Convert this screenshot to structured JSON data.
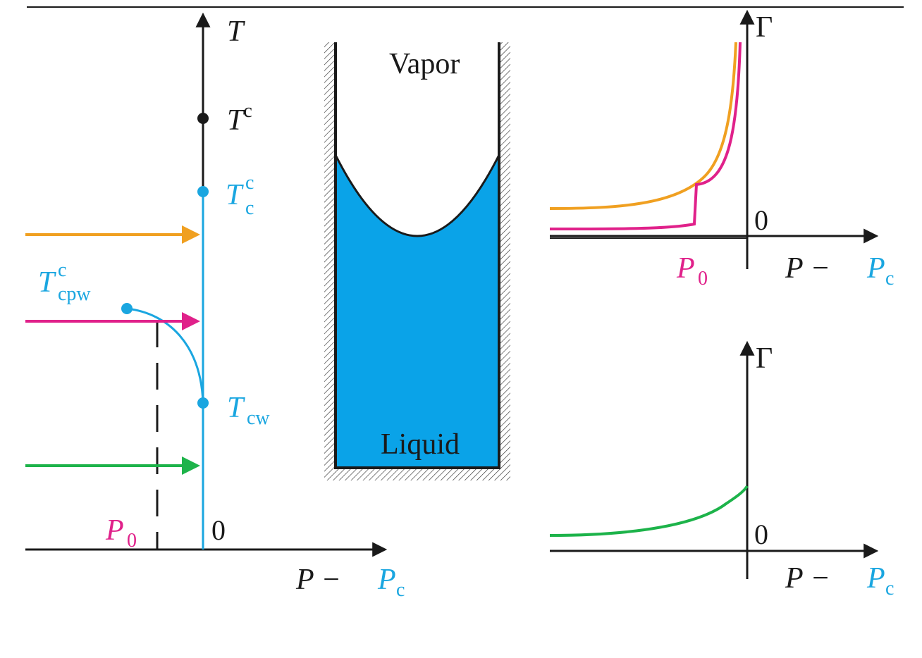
{
  "colors": {
    "black": "#1a1a1a",
    "cyan": "#1aa6e0",
    "orange": "#f0a021",
    "magenta": "#e0218a",
    "green": "#1db34a",
    "liquid": "#0aa3e8"
  },
  "phase_diagram": {
    "axis_T": "T",
    "Tc_main": "T",
    "Tc_main_sup": "c",
    "Tc_capillary": "T",
    "Tc_capillary_sup": "c",
    "Tc_capillary_sub": "c",
    "Tcpw": "T",
    "Tcpw_sup": "c",
    "Tcpw_sub": "cpw",
    "Tcw": "T",
    "Tcw_sub": "cw",
    "P0": "P",
    "P0_sub": "0",
    "origin": "0",
    "xaxis_P": "P −",
    "xaxis_Pc": "P",
    "xaxis_Pc_sub": "c"
  },
  "capillary": {
    "vapor_label": "Vapor",
    "liquid_label": "Liquid"
  },
  "top_plot": {
    "yaxis": "Γ",
    "origin": "0",
    "P0": "P",
    "P0_sub": "0",
    "xaxis_P": "P −",
    "xaxis_Pc": "P",
    "xaxis_Pc_sub": "c"
  },
  "bottom_plot": {
    "yaxis": "Γ",
    "origin": "0",
    "xaxis_P": "P −",
    "xaxis_Pc": "P",
    "xaxis_Pc_sub": "c"
  }
}
